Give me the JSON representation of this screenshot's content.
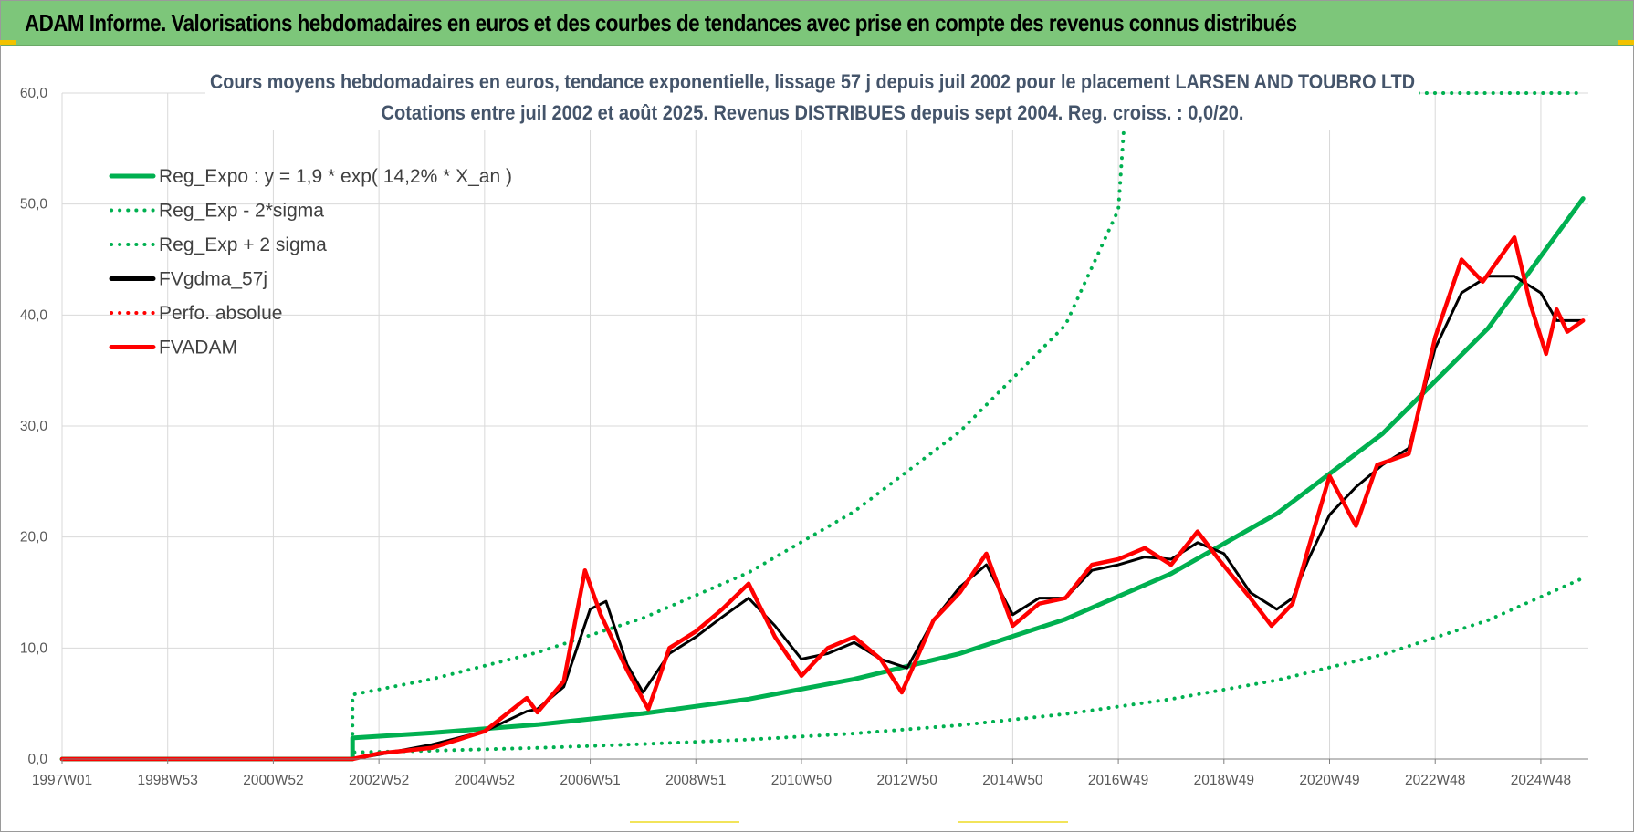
{
  "banner": {
    "title": "ADAM Informe. Valorisations hebdomadaires en euros et des courbes de tendances avec prise en compte des revenus connus distribués"
  },
  "colors": {
    "banner_bg": "#7dc67a",
    "reg_expo": "#00b050",
    "fvgdma": "#000000",
    "fvadam": "#ff0000",
    "grid": "#d9d9d9"
  },
  "chart_data": {
    "type": "line",
    "title": "Cours moyens hebdomadaires en euros, tendance exponentielle, lissage 57 j depuis juil 2002 pour le placement LARSEN AND TOUBRO LTD",
    "subtitle": "Cotations entre juil 2002 et août 2025. Revenus DISTRIBUES depuis sept 2004. Reg. croiss. : 0,0/20.",
    "xlabel": "",
    "ylabel": "",
    "ylim": [
      0,
      60
    ],
    "yticks": [
      "0,0",
      "10,0",
      "20,0",
      "30,0",
      "40,0",
      "50,0",
      "60,0"
    ],
    "xlim": [
      1997.0,
      2025.9
    ],
    "xticks": [
      {
        "label": "1997W01",
        "x": 1997.0
      },
      {
        "label": "1998W53",
        "x": 1999.0
      },
      {
        "label": "2000W52",
        "x": 2001.0
      },
      {
        "label": "2002W52",
        "x": 2003.0
      },
      {
        "label": "2004W52",
        "x": 2005.0
      },
      {
        "label": "2006W51",
        "x": 2007.0
      },
      {
        "label": "2008W51",
        "x": 2009.0
      },
      {
        "label": "2010W50",
        "x": 2011.0
      },
      {
        "label": "2012W50",
        "x": 2013.0
      },
      {
        "label": "2014W50",
        "x": 2015.0
      },
      {
        "label": "2016W49",
        "x": 2017.0
      },
      {
        "label": "2018W49",
        "x": 2019.0
      },
      {
        "label": "2020W49",
        "x": 2021.0
      },
      {
        "label": "2022W48",
        "x": 2023.0
      },
      {
        "label": "2024W48",
        "x": 2025.0
      }
    ],
    "grid": true,
    "legend_position": "top-left",
    "series": [
      {
        "name": "Reg_Expo : y = 1,9 * exp( 14,2% *  X_an )",
        "color": "#00b050",
        "style": "solid",
        "x": [
          1997.0,
          2002.5,
          2002.5,
          2004.0,
          2006.0,
          2008.0,
          2010.0,
          2012.0,
          2014.0,
          2016.0,
          2018.0,
          2020.0,
          2022.0,
          2024.0,
          2025.8
        ],
        "y": [
          0,
          0,
          1.9,
          2.35,
          3.1,
          4.1,
          5.4,
          7.2,
          9.5,
          12.6,
          16.7,
          22.1,
          29.3,
          38.8,
          50.5
        ]
      },
      {
        "name": "Reg_Exp - 2*sigma",
        "color": "#00b050",
        "style": "dotted",
        "x": [
          1997.0,
          2002.5,
          2002.5,
          2004.0,
          2006.0,
          2008.0,
          2010.0,
          2012.0,
          2014.0,
          2016.0,
          2018.0,
          2020.0,
          2022.0,
          2024.0,
          2025.8
        ],
        "y": [
          0,
          0,
          0.6,
          0.75,
          1.0,
          1.35,
          1.75,
          2.3,
          3.05,
          4.05,
          5.4,
          7.1,
          9.4,
          12.5,
          16.3
        ]
      },
      {
        "name": "Reg_Exp + 2 sigma",
        "color": "#00b050",
        "style": "dotted",
        "x": [
          1997.0,
          2002.5,
          2002.5,
          2004.0,
          2006.0,
          2008.0,
          2010.0,
          2012.0,
          2014.0,
          2016.0,
          2017.0,
          2017.15,
          2025.8
        ],
        "y": [
          0,
          0,
          5.8,
          7.2,
          9.6,
          12.7,
          16.8,
          22.3,
          29.5,
          39.1,
          49.5,
          60,
          60
        ]
      },
      {
        "name": "FVgdma_57j",
        "color": "#000000",
        "style": "solid",
        "x": [
          1997.0,
          2002.5,
          2003.0,
          2004.0,
          2005.0,
          2005.8,
          2006.0,
          2006.5,
          2007.0,
          2007.3,
          2007.7,
          2008.0,
          2008.5,
          2009.0,
          2009.5,
          2010.0,
          2010.5,
          2011.0,
          2011.5,
          2012.0,
          2012.5,
          2013.0,
          2013.5,
          2014.0,
          2014.5,
          2015.0,
          2015.5,
          2016.0,
          2016.5,
          2017.0,
          2017.5,
          2018.0,
          2018.5,
          2019.0,
          2019.5,
          2020.0,
          2020.3,
          2020.6,
          2021.0,
          2021.5,
          2022.0,
          2022.5,
          2023.0,
          2023.5,
          2024.0,
          2024.5,
          2025.0,
          2025.3,
          2025.8
        ],
        "y": [
          0,
          0,
          0.4,
          1.3,
          2.5,
          4.3,
          4.5,
          6.5,
          13.5,
          14.2,
          8.5,
          6.0,
          9.5,
          11.0,
          12.8,
          14.5,
          12.0,
          9.0,
          9.5,
          10.5,
          9.0,
          8.2,
          12.5,
          15.5,
          17.5,
          13.0,
          14.5,
          14.5,
          17.0,
          17.5,
          18.2,
          18.0,
          19.5,
          18.5,
          15.0,
          13.5,
          14.5,
          18.0,
          22.0,
          24.5,
          26.5,
          28.0,
          37.0,
          42.0,
          43.5,
          43.5,
          42.0,
          39.5,
          39.5
        ]
      },
      {
        "name": "Perfo. absolue",
        "color": "#ff0000",
        "style": "dotted",
        "x": [
          1997.0,
          2002.5,
          2003.0,
          2004.0,
          2005.0,
          2005.8,
          2006.0,
          2006.5,
          2006.9,
          2007.2,
          2007.7,
          2008.1,
          2008.5,
          2009.0,
          2009.5,
          2010.0,
          2010.5,
          2011.0,
          2011.5,
          2012.0,
          2012.5,
          2012.9,
          2013.5,
          2014.0,
          2014.5,
          2015.0,
          2015.5,
          2016.0,
          2016.5,
          2017.0,
          2017.5,
          2018.0,
          2018.5,
          2018.9,
          2019.5,
          2019.9,
          2020.3,
          2020.6,
          2021.0,
          2021.5,
          2021.9,
          2022.5,
          2023.0,
          2023.5,
          2023.9,
          2024.5,
          2024.8,
          2025.1,
          2025.3,
          2025.5,
          2025.8
        ],
        "y": [
          0,
          0,
          0.5,
          1.0,
          2.5,
          5.5,
          4.2,
          7.0,
          17.0,
          13.0,
          8.0,
          4.5,
          10.0,
          11.5,
          13.5,
          15.8,
          11.0,
          7.5,
          10.0,
          11.0,
          9.0,
          6.0,
          12.5,
          15.0,
          18.5,
          12.0,
          14.0,
          14.5,
          17.5,
          18.0,
          19.0,
          17.5,
          20.5,
          18.0,
          14.5,
          12.0,
          14.0,
          19.0,
          25.5,
          21.0,
          26.5,
          27.5,
          38.0,
          45.0,
          43.0,
          47.0,
          41.0,
          36.5,
          40.5,
          38.5,
          39.5
        ]
      },
      {
        "name": "FVADAM",
        "color": "#ff0000",
        "style": "solid",
        "x": [
          1997.0,
          2002.5,
          2003.0,
          2004.0,
          2005.0,
          2005.8,
          2006.0,
          2006.5,
          2006.9,
          2007.2,
          2007.7,
          2008.1,
          2008.5,
          2009.0,
          2009.5,
          2010.0,
          2010.5,
          2011.0,
          2011.5,
          2012.0,
          2012.5,
          2012.9,
          2013.5,
          2014.0,
          2014.5,
          2015.0,
          2015.5,
          2016.0,
          2016.5,
          2017.0,
          2017.5,
          2018.0,
          2018.5,
          2018.9,
          2019.5,
          2019.9,
          2020.3,
          2020.6,
          2021.0,
          2021.5,
          2021.9,
          2022.5,
          2023.0,
          2023.5,
          2023.9,
          2024.5,
          2024.8,
          2025.1,
          2025.3,
          2025.5,
          2025.8
        ],
        "y": [
          0,
          0,
          0.5,
          1.0,
          2.5,
          5.5,
          4.2,
          7.0,
          17.0,
          13.0,
          8.0,
          4.5,
          10.0,
          11.5,
          13.5,
          15.8,
          11.0,
          7.5,
          10.0,
          11.0,
          9.0,
          6.0,
          12.5,
          15.0,
          18.5,
          12.0,
          14.0,
          14.5,
          17.5,
          18.0,
          19.0,
          17.5,
          20.5,
          18.0,
          14.5,
          12.0,
          14.0,
          19.0,
          25.5,
          21.0,
          26.5,
          27.5,
          38.0,
          45.0,
          43.0,
          47.0,
          41.0,
          36.5,
          40.5,
          38.5,
          39.5
        ]
      }
    ]
  }
}
